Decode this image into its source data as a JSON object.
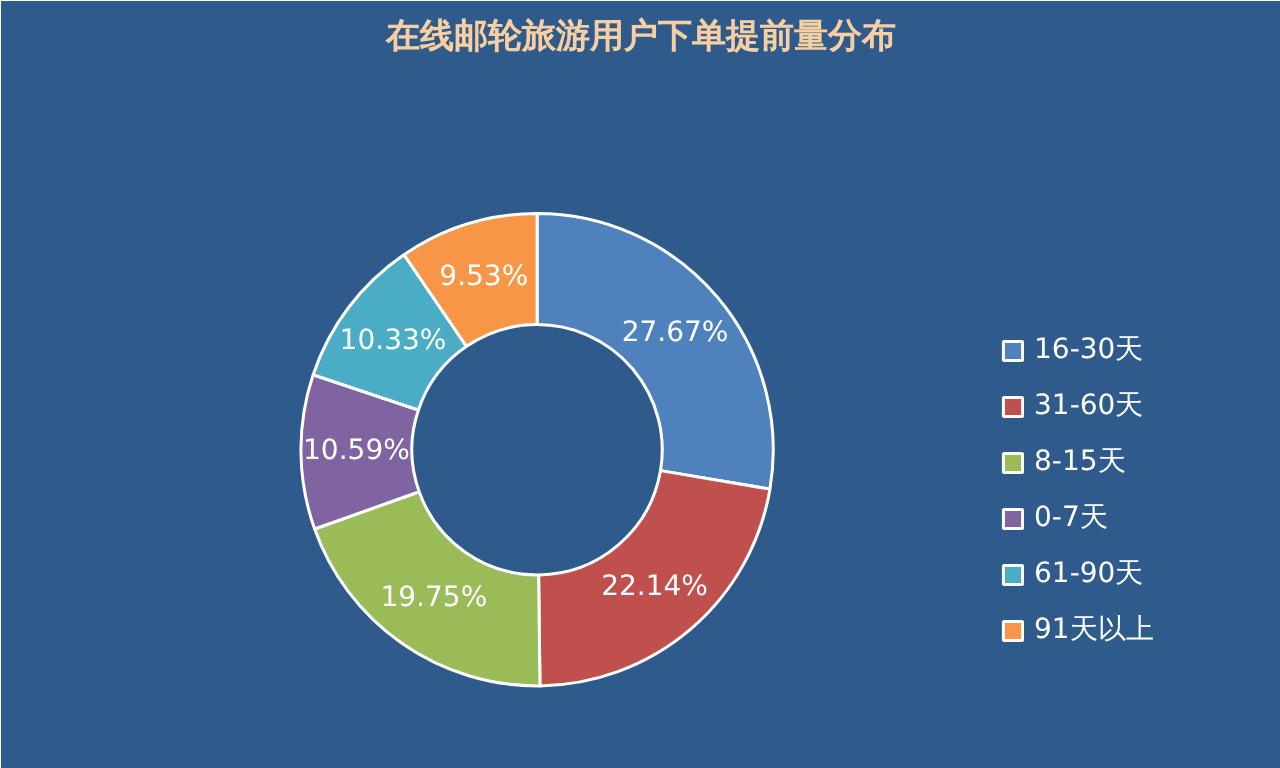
{
  "chart_data": {
    "type": "donut",
    "title": "在线邮轮旅游用户下单提前量分布",
    "categories": [
      "16-30天",
      "31-60天",
      "8-15天",
      "0-7天",
      "61-90天",
      "91天以上"
    ],
    "values": [
      27.67,
      22.14,
      19.75,
      10.59,
      10.33,
      9.53
    ],
    "colors": [
      "#4f81bd",
      "#c0504d",
      "#9bbb59",
      "#8064a2",
      "#4bacc6",
      "#f79646"
    ],
    "value_labels": [
      "27.67%",
      "22.14%",
      "19.75%",
      "10.59%",
      "10.33%",
      "9.53%"
    ],
    "legend": "right"
  }
}
